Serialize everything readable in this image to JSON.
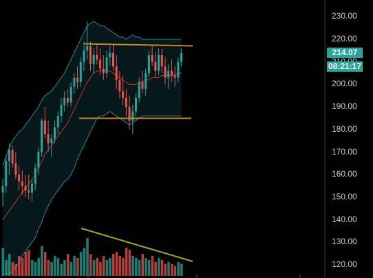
{
  "colors": {
    "background": "#000000",
    "bull": "#26a69a",
    "bear": "#ef5350",
    "bollinger_band": "#2a8a9a",
    "band_fill": "#06181a",
    "middle_band": "#c0392b",
    "trendline_resistance": "#c58a2a",
    "trendline_volume": "#a3a32a",
    "tag_background": "#26a69a"
  },
  "chart_data": {
    "type": "candlestick",
    "y_ticks": [
      "230.00",
      "220.00",
      "210.00",
      "200.00",
      "190.00",
      "180.00",
      "170.00",
      "160.00",
      "150.00",
      "140.00",
      "130.00",
      "120.00"
    ],
    "ylim": [
      116.5,
      236.5
    ],
    "current_price": "214.07",
    "countdown": "08:21:17",
    "candles": [
      {
        "o": 152,
        "h": 158,
        "l": 146,
        "c": 155
      },
      {
        "o": 155,
        "h": 168,
        "l": 152,
        "c": 166
      },
      {
        "o": 166,
        "h": 174,
        "l": 160,
        "c": 171
      },
      {
        "o": 171,
        "h": 173,
        "l": 163,
        "c": 165
      },
      {
        "o": 165,
        "h": 170,
        "l": 158,
        "c": 160
      },
      {
        "o": 160,
        "h": 164,
        "l": 153,
        "c": 157
      },
      {
        "o": 157,
        "h": 162,
        "l": 151,
        "c": 155
      },
      {
        "o": 155,
        "h": 160,
        "l": 150,
        "c": 153
      },
      {
        "o": 153,
        "h": 160,
        "l": 149,
        "c": 152
      },
      {
        "o": 152,
        "h": 158,
        "l": 148,
        "c": 156
      },
      {
        "o": 156,
        "h": 165,
        "l": 153,
        "c": 163
      },
      {
        "o": 163,
        "h": 172,
        "l": 160,
        "c": 170
      },
      {
        "o": 170,
        "h": 185,
        "l": 168,
        "c": 184
      },
      {
        "o": 184,
        "h": 190,
        "l": 176,
        "c": 178
      },
      {
        "o": 178,
        "h": 184,
        "l": 170,
        "c": 174
      },
      {
        "o": 174,
        "h": 178,
        "l": 168,
        "c": 176
      },
      {
        "o": 176,
        "h": 184,
        "l": 174,
        "c": 181
      },
      {
        "o": 181,
        "h": 188,
        "l": 178,
        "c": 186
      },
      {
        "o": 186,
        "h": 194,
        "l": 183,
        "c": 191
      },
      {
        "o": 191,
        "h": 197,
        "l": 188,
        "c": 194
      },
      {
        "o": 194,
        "h": 198,
        "l": 190,
        "c": 192
      },
      {
        "o": 192,
        "h": 201,
        "l": 190,
        "c": 199
      },
      {
        "o": 199,
        "h": 205,
        "l": 196,
        "c": 203
      },
      {
        "o": 203,
        "h": 208,
        "l": 198,
        "c": 201
      },
      {
        "o": 201,
        "h": 212,
        "l": 199,
        "c": 210
      },
      {
        "o": 210,
        "h": 219,
        "l": 206,
        "c": 215
      },
      {
        "o": 215,
        "h": 228,
        "l": 211,
        "c": 217
      },
      {
        "o": 217,
        "h": 219,
        "l": 206,
        "c": 209
      },
      {
        "o": 209,
        "h": 216,
        "l": 205,
        "c": 213
      },
      {
        "o": 213,
        "h": 218,
        "l": 209,
        "c": 211
      },
      {
        "o": 211,
        "h": 216,
        "l": 204,
        "c": 207
      },
      {
        "o": 207,
        "h": 213,
        "l": 202,
        "c": 205
      },
      {
        "o": 205,
        "h": 215,
        "l": 203,
        "c": 212
      },
      {
        "o": 212,
        "h": 217,
        "l": 208,
        "c": 214
      },
      {
        "o": 214,
        "h": 218,
        "l": 206,
        "c": 208
      },
      {
        "o": 208,
        "h": 213,
        "l": 198,
        "c": 202
      },
      {
        "o": 202,
        "h": 206,
        "l": 194,
        "c": 197
      },
      {
        "o": 197,
        "h": 204,
        "l": 191,
        "c": 194
      },
      {
        "o": 194,
        "h": 198,
        "l": 186,
        "c": 190
      },
      {
        "o": 190,
        "h": 195,
        "l": 180,
        "c": 184
      },
      {
        "o": 184,
        "h": 191,
        "l": 178,
        "c": 188
      },
      {
        "o": 188,
        "h": 196,
        "l": 186,
        "c": 194
      },
      {
        "o": 194,
        "h": 203,
        "l": 192,
        "c": 201
      },
      {
        "o": 201,
        "h": 206,
        "l": 196,
        "c": 198
      },
      {
        "o": 198,
        "h": 207,
        "l": 195,
        "c": 205
      },
      {
        "o": 205,
        "h": 215,
        "l": 203,
        "c": 213
      },
      {
        "o": 213,
        "h": 217,
        "l": 208,
        "c": 210
      },
      {
        "o": 210,
        "h": 214,
        "l": 203,
        "c": 206
      },
      {
        "o": 206,
        "h": 216,
        "l": 204,
        "c": 213
      },
      {
        "o": 213,
        "h": 216,
        "l": 205,
        "c": 208
      },
      {
        "o": 208,
        "h": 212,
        "l": 200,
        "c": 203
      },
      {
        "o": 203,
        "h": 209,
        "l": 198,
        "c": 206
      },
      {
        "o": 206,
        "h": 211,
        "l": 201,
        "c": 204
      },
      {
        "o": 204,
        "h": 208,
        "l": 199,
        "c": 203
      },
      {
        "o": 203,
        "h": 212,
        "l": 201,
        "c": 210
      },
      {
        "o": 210,
        "h": 216,
        "l": 208,
        "c": 214
      }
    ],
    "volumes": [
      0.7,
      0.4,
      0.55,
      0.35,
      0.3,
      0.5,
      0.45,
      0.6,
      0.65,
      0.4,
      0.35,
      0.45,
      0.75,
      0.6,
      0.4,
      0.35,
      0.5,
      0.45,
      0.3,
      0.4,
      0.55,
      0.35,
      0.5,
      0.45,
      0.6,
      0.7,
      0.95,
      0.55,
      0.4,
      0.45,
      0.35,
      0.5,
      0.4,
      0.45,
      0.55,
      0.6,
      0.5,
      0.45,
      0.7,
      0.65,
      0.5,
      0.45,
      0.4,
      0.55,
      0.45,
      0.4,
      0.5,
      0.35,
      0.45,
      0.4,
      0.3,
      0.35,
      0.3,
      0.25,
      0.35,
      0.3
    ],
    "bollinger": {
      "upper": [
        164,
        168,
        172,
        175,
        177,
        179,
        180,
        182,
        184,
        186,
        188,
        190,
        193,
        195,
        196,
        197,
        199,
        201,
        203,
        205,
        208,
        211,
        214,
        217,
        220,
        223,
        226,
        227,
        228,
        227,
        226,
        226,
        225,
        224,
        223,
        222,
        221,
        221,
        220,
        221,
        222,
        221,
        221,
        220,
        220,
        220,
        220,
        220,
        220,
        220,
        220,
        220,
        220,
        220,
        220,
        220
      ],
      "middle": [
        140,
        142,
        144,
        146,
        148,
        150,
        152,
        154,
        156,
        158,
        160,
        163,
        166,
        169,
        171,
        173,
        175,
        177,
        179,
        181,
        183,
        186,
        189,
        192,
        195,
        198,
        201,
        203,
        205,
        206,
        206,
        206,
        206,
        206,
        205,
        204,
        203,
        202,
        201,
        200,
        200,
        200,
        201,
        201,
        202,
        202,
        203,
        203,
        203,
        204,
        204,
        204,
        204,
        204,
        205,
        205
      ],
      "lower": [
        116,
        116,
        116,
        117,
        119,
        121,
        124,
        126,
        128,
        130,
        132,
        136,
        139,
        143,
        146,
        149,
        151,
        153,
        155,
        157,
        158,
        160,
        163,
        167,
        170,
        173,
        176,
        179,
        182,
        185,
        186,
        186,
        187,
        188,
        187,
        186,
        185,
        184,
        183,
        182,
        183,
        184,
        185,
        186,
        186,
        186,
        186,
        186,
        186,
        186,
        186,
        186,
        186,
        186,
        186,
        186
      ]
    },
    "trendlines": [
      {
        "name": "resistance",
        "from": [
          25,
          218
        ],
        "to": [
          58.5,
          217.1
        ]
      },
      {
        "name": "support",
        "from": [
          23.5,
          185
        ],
        "to": [
          58,
          185
        ]
      }
    ]
  }
}
